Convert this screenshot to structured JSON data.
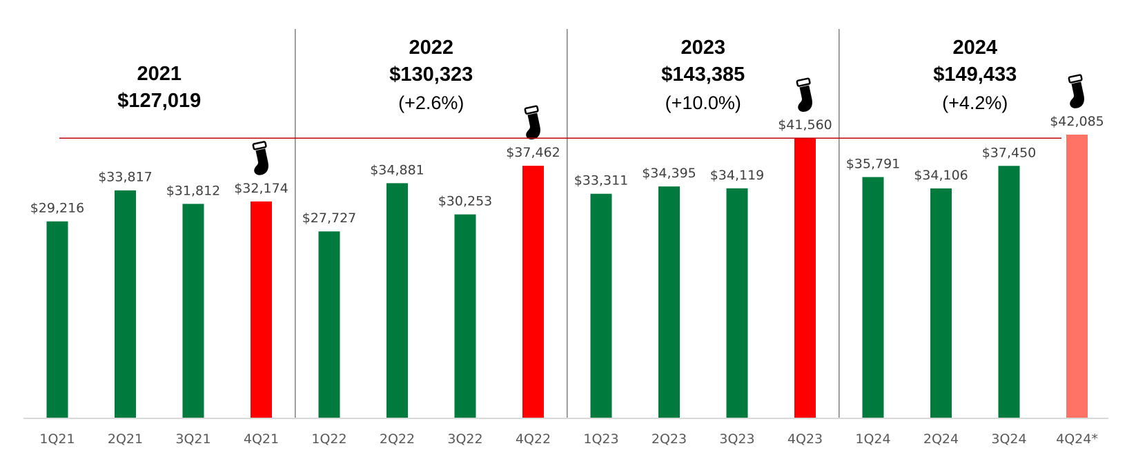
{
  "chart_data": {
    "type": "bar",
    "categories": [
      "1Q21",
      "2Q21",
      "3Q21",
      "4Q21",
      "1Q22",
      "2Q22",
      "3Q22",
      "4Q22",
      "1Q23",
      "2Q23",
      "3Q23",
      "4Q23",
      "1Q24",
      "2Q24",
      "3Q24",
      "4Q24*"
    ],
    "values": [
      29216,
      33817,
      31812,
      32174,
      27727,
      34881,
      30253,
      37462,
      33311,
      34395,
      34119,
      41560,
      35791,
      34106,
      37450,
      42085
    ],
    "value_labels": [
      "$29,216",
      "$33,817",
      "$31,812",
      "$32,174",
      "$27,727",
      "$34,881",
      "$30,253",
      "$37,462",
      "$33,311",
      "$34,395",
      "$34,119",
      "$41,560",
      "$35,791",
      "$34,106",
      "$37,450",
      "$42,085"
    ],
    "bar_colors": [
      "#007A3D",
      "#007A3D",
      "#007A3D",
      "#FF0000",
      "#007A3D",
      "#007A3D",
      "#007A3D",
      "#FF0000",
      "#007A3D",
      "#007A3D",
      "#007A3D",
      "#FF0000",
      "#007A3D",
      "#007A3D",
      "#007A3D",
      "#FF7366"
    ],
    "highlight_quarters": [
      "4Q21",
      "4Q22",
      "4Q23",
      "4Q24*"
    ],
    "highlight_icon": "stocking-icon",
    "reference_line": {
      "value": 41560,
      "color": "#C00000"
    },
    "year_groups": [
      {
        "year": "2021",
        "total": "$127,019",
        "change": ""
      },
      {
        "year": "2022",
        "total": "$130,323",
        "change": "(+2.6%)"
      },
      {
        "year": "2023",
        "total": "$143,385",
        "change": "(+10.0%)"
      },
      {
        "year": "2024",
        "total": "$149,433",
        "change": "(+4.2%)"
      }
    ],
    "ylim": [
      0,
      42085
    ],
    "grid": false,
    "legend": "none",
    "title": "",
    "xlabel": "",
    "ylabel": ""
  }
}
